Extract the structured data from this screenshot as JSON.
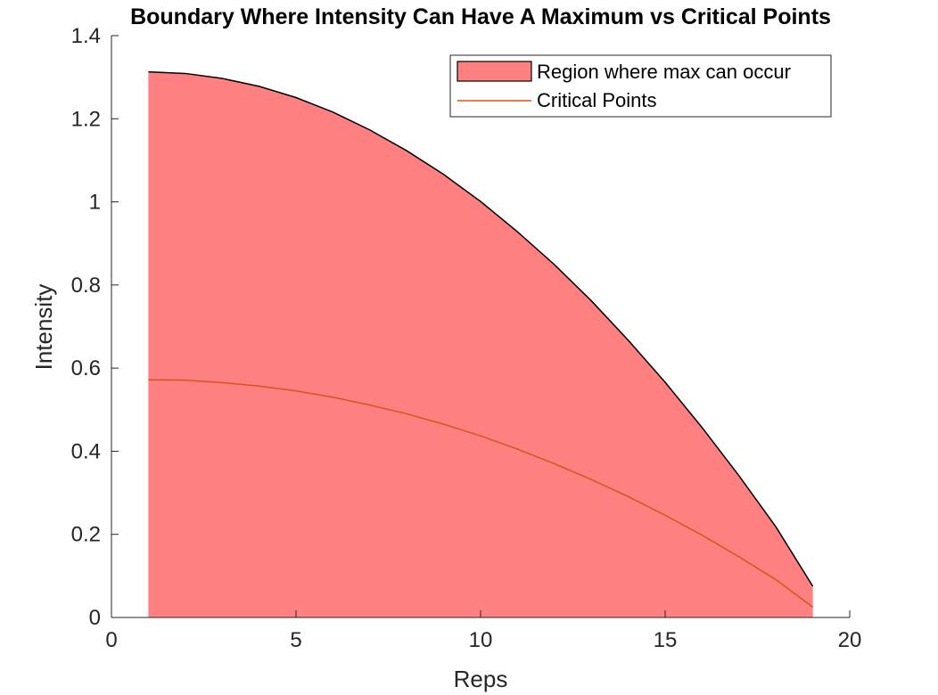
{
  "chart_data": {
    "type": "area",
    "title": "Boundary Where Intensity Can Have A Maximum vs Critical Points",
    "xlabel": "Reps",
    "ylabel": "Intensity",
    "xlim": [
      0,
      20
    ],
    "ylim": [
      0,
      1.4
    ],
    "xticks": [
      0,
      5,
      10,
      15,
      20
    ],
    "xtick_labels": [
      "0",
      "5",
      "10",
      "15",
      "20"
    ],
    "yticks": [
      0,
      0.2,
      0.4,
      0.6,
      0.8,
      1.0,
      1.2,
      1.4
    ],
    "ytick_labels": [
      "0",
      "0.2",
      "0.4",
      "0.6",
      "0.8",
      "1",
      "1.2",
      "1.4"
    ],
    "grid": false,
    "legend_position": "top-right",
    "x": [
      1,
      2,
      3,
      4,
      5,
      6,
      7,
      8,
      9,
      10,
      11,
      12,
      13,
      14,
      15,
      16,
      17,
      18,
      19
    ],
    "series": [
      {
        "name": "Region where max can occur",
        "kind": "area",
        "fill_color": "#ff8080",
        "edge_color": "#000000",
        "values": [
          1.313,
          1.309,
          1.297,
          1.278,
          1.251,
          1.216,
          1.173,
          1.123,
          1.066,
          1.001,
          0.928,
          0.849,
          0.762,
          0.667,
          0.566,
          0.457,
          0.341,
          0.218,
          0.075
        ]
      },
      {
        "name": "Critical Points",
        "kind": "line",
        "color": "#d95319",
        "values": [
          0.572,
          0.571,
          0.565,
          0.557,
          0.545,
          0.53,
          0.511,
          0.49,
          0.465,
          0.437,
          0.405,
          0.37,
          0.332,
          0.291,
          0.246,
          0.198,
          0.146,
          0.091,
          0.025
        ]
      }
    ]
  }
}
